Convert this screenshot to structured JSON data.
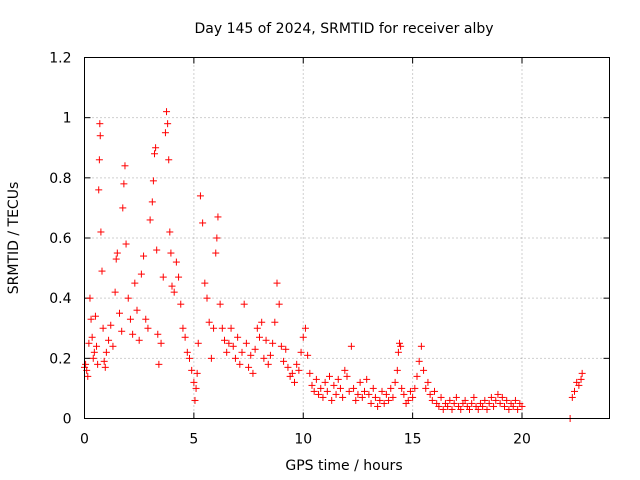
{
  "chart_data": {
    "type": "scatter",
    "title": "Day 145 of 2024, SRMTID for receiver alby",
    "xlabel": "GPS time / hours",
    "ylabel": "SRMTID / TECUs",
    "xlim": [
      0,
      24
    ],
    "ylim": [
      0,
      1.2
    ],
    "xticks": [
      0,
      5,
      10,
      15,
      20
    ],
    "yticks": [
      0,
      0.2,
      0.4,
      0.6,
      0.8,
      1,
      1.2
    ],
    "ytick_labels": [
      "0",
      "0.2",
      "0.4",
      "0.6",
      "0.8",
      "1",
      "1.2"
    ],
    "grid": true,
    "marker": "+",
    "color": "#ff0000",
    "series": [
      {
        "name": "SRMTID",
        "points": [
          [
            0.0,
            0.17
          ],
          [
            0.05,
            0.18
          ],
          [
            0.1,
            0.16
          ],
          [
            0.15,
            0.14
          ],
          [
            0.2,
            0.25
          ],
          [
            0.25,
            0.4
          ],
          [
            0.3,
            0.33
          ],
          [
            0.35,
            0.27
          ],
          [
            0.4,
            0.2
          ],
          [
            0.45,
            0.22
          ],
          [
            0.5,
            0.34
          ],
          [
            0.55,
            0.24
          ],
          [
            0.6,
            0.18
          ],
          [
            0.65,
            0.76
          ],
          [
            0.68,
            0.86
          ],
          [
            0.7,
            0.98
          ],
          [
            0.72,
            0.94
          ],
          [
            0.75,
            0.62
          ],
          [
            0.8,
            0.49
          ],
          [
            0.85,
            0.3
          ],
          [
            0.9,
            0.19
          ],
          [
            0.95,
            0.17
          ],
          [
            1.0,
            0.22
          ],
          [
            1.1,
            0.26
          ],
          [
            1.2,
            0.31
          ],
          [
            1.3,
            0.24
          ],
          [
            1.4,
            0.42
          ],
          [
            1.45,
            0.53
          ],
          [
            1.5,
            0.55
          ],
          [
            1.6,
            0.35
          ],
          [
            1.7,
            0.29
          ],
          [
            1.75,
            0.7
          ],
          [
            1.8,
            0.78
          ],
          [
            1.85,
            0.84
          ],
          [
            1.9,
            0.58
          ],
          [
            2.0,
            0.4
          ],
          [
            2.1,
            0.33
          ],
          [
            2.2,
            0.28
          ],
          [
            2.3,
            0.45
          ],
          [
            2.4,
            0.36
          ],
          [
            2.5,
            0.26
          ],
          [
            2.6,
            0.48
          ],
          [
            2.7,
            0.54
          ],
          [
            2.8,
            0.33
          ],
          [
            2.9,
            0.3
          ],
          [
            3.0,
            0.66
          ],
          [
            3.1,
            0.72
          ],
          [
            3.15,
            0.79
          ],
          [
            3.2,
            0.88
          ],
          [
            3.25,
            0.9
          ],
          [
            3.3,
            0.56
          ],
          [
            3.35,
            0.28
          ],
          [
            3.4,
            0.18
          ],
          [
            3.5,
            0.25
          ],
          [
            3.6,
            0.47
          ],
          [
            3.7,
            0.95
          ],
          [
            3.75,
            1.02
          ],
          [
            3.8,
            0.98
          ],
          [
            3.85,
            0.86
          ],
          [
            3.9,
            0.62
          ],
          [
            3.95,
            0.55
          ],
          [
            4.0,
            0.44
          ],
          [
            4.1,
            0.42
          ],
          [
            4.2,
            0.52
          ],
          [
            4.3,
            0.47
          ],
          [
            4.4,
            0.38
          ],
          [
            4.5,
            0.3
          ],
          [
            4.6,
            0.27
          ],
          [
            4.7,
            0.22
          ],
          [
            4.8,
            0.2
          ],
          [
            4.9,
            0.16
          ],
          [
            5.0,
            0.12
          ],
          [
            5.05,
            0.06
          ],
          [
            5.1,
            0.1
          ],
          [
            5.15,
            0.15
          ],
          [
            5.2,
            0.25
          ],
          [
            5.3,
            0.74
          ],
          [
            5.4,
            0.65
          ],
          [
            5.5,
            0.45
          ],
          [
            5.6,
            0.4
          ],
          [
            5.7,
            0.32
          ],
          [
            5.8,
            0.2
          ],
          [
            5.9,
            0.3
          ],
          [
            6.0,
            0.55
          ],
          [
            6.05,
            0.6
          ],
          [
            6.1,
            0.67
          ],
          [
            6.2,
            0.38
          ],
          [
            6.3,
            0.3
          ],
          [
            6.4,
            0.26
          ],
          [
            6.5,
            0.22
          ],
          [
            6.6,
            0.25
          ],
          [
            6.7,
            0.3
          ],
          [
            6.8,
            0.24
          ],
          [
            6.9,
            0.2
          ],
          [
            7.0,
            0.27
          ],
          [
            7.1,
            0.18
          ],
          [
            7.2,
            0.22
          ],
          [
            7.3,
            0.38
          ],
          [
            7.4,
            0.25
          ],
          [
            7.5,
            0.17
          ],
          [
            7.6,
            0.21
          ],
          [
            7.7,
            0.15
          ],
          [
            7.8,
            0.23
          ],
          [
            7.9,
            0.3
          ],
          [
            8.0,
            0.27
          ],
          [
            8.1,
            0.32
          ],
          [
            8.2,
            0.2
          ],
          [
            8.3,
            0.26
          ],
          [
            8.4,
            0.18
          ],
          [
            8.5,
            0.21
          ],
          [
            8.6,
            0.25
          ],
          [
            8.7,
            0.32
          ],
          [
            8.8,
            0.45
          ],
          [
            8.9,
            0.38
          ],
          [
            9.0,
            0.24
          ],
          [
            9.1,
            0.19
          ],
          [
            9.2,
            0.23
          ],
          [
            9.3,
            0.17
          ],
          [
            9.4,
            0.14
          ],
          [
            9.5,
            0.15
          ],
          [
            9.6,
            0.12
          ],
          [
            9.7,
            0.18
          ],
          [
            9.8,
            0.16
          ],
          [
            9.9,
            0.22
          ],
          [
            10.0,
            0.27
          ],
          [
            10.1,
            0.3
          ],
          [
            10.2,
            0.21
          ],
          [
            10.3,
            0.15
          ],
          [
            10.4,
            0.11
          ],
          [
            10.5,
            0.09
          ],
          [
            10.6,
            0.13
          ],
          [
            10.7,
            0.08
          ],
          [
            10.8,
            0.1
          ],
          [
            10.9,
            0.07
          ],
          [
            11.0,
            0.12
          ],
          [
            11.1,
            0.09
          ],
          [
            11.2,
            0.14
          ],
          [
            11.3,
            0.06
          ],
          [
            11.4,
            0.11
          ],
          [
            11.5,
            0.08
          ],
          [
            11.6,
            0.13
          ],
          [
            11.7,
            0.1
          ],
          [
            11.8,
            0.07
          ],
          [
            11.9,
            0.16
          ],
          [
            12.0,
            0.14
          ],
          [
            12.1,
            0.09
          ],
          [
            12.2,
            0.24
          ],
          [
            12.3,
            0.1
          ],
          [
            12.4,
            0.06
          ],
          [
            12.5,
            0.08
          ],
          [
            12.6,
            0.12
          ],
          [
            12.7,
            0.07
          ],
          [
            12.8,
            0.09
          ],
          [
            12.9,
            0.13
          ],
          [
            13.0,
            0.08
          ],
          [
            13.1,
            0.05
          ],
          [
            13.2,
            0.1
          ],
          [
            13.3,
            0.07
          ],
          [
            13.4,
            0.04
          ],
          [
            13.5,
            0.06
          ],
          [
            13.6,
            0.09
          ],
          [
            13.7,
            0.05
          ],
          [
            13.8,
            0.08
          ],
          [
            13.9,
            0.06
          ],
          [
            14.0,
            0.1
          ],
          [
            14.1,
            0.07
          ],
          [
            14.2,
            0.12
          ],
          [
            14.3,
            0.16
          ],
          [
            14.35,
            0.22
          ],
          [
            14.4,
            0.25
          ],
          [
            14.45,
            0.24
          ],
          [
            14.5,
            0.1
          ],
          [
            14.6,
            0.08
          ],
          [
            14.7,
            0.05
          ],
          [
            14.8,
            0.06
          ],
          [
            14.9,
            0.09
          ],
          [
            15.0,
            0.07
          ],
          [
            15.1,
            0.1
          ],
          [
            15.2,
            0.14
          ],
          [
            15.3,
            0.19
          ],
          [
            15.4,
            0.24
          ],
          [
            15.5,
            0.16
          ],
          [
            15.6,
            0.1
          ],
          [
            15.7,
            0.12
          ],
          [
            15.8,
            0.08
          ],
          [
            15.9,
            0.06
          ],
          [
            16.0,
            0.09
          ],
          [
            16.1,
            0.05
          ],
          [
            16.2,
            0.04
          ],
          [
            16.3,
            0.07
          ],
          [
            16.4,
            0.03
          ],
          [
            16.5,
            0.05
          ],
          [
            16.6,
            0.04
          ],
          [
            16.7,
            0.06
          ],
          [
            16.8,
            0.03
          ],
          [
            16.9,
            0.05
          ],
          [
            17.0,
            0.07
          ],
          [
            17.1,
            0.04
          ],
          [
            17.2,
            0.03
          ],
          [
            17.3,
            0.05
          ],
          [
            17.4,
            0.06
          ],
          [
            17.5,
            0.04
          ],
          [
            17.6,
            0.03
          ],
          [
            17.7,
            0.05
          ],
          [
            17.8,
            0.07
          ],
          [
            17.9,
            0.04
          ],
          [
            18.0,
            0.03
          ],
          [
            18.1,
            0.05
          ],
          [
            18.2,
            0.04
          ],
          [
            18.3,
            0.06
          ],
          [
            18.4,
            0.03
          ],
          [
            18.5,
            0.05
          ],
          [
            18.6,
            0.07
          ],
          [
            18.7,
            0.04
          ],
          [
            18.8,
            0.06
          ],
          [
            18.9,
            0.08
          ],
          [
            19.0,
            0.05
          ],
          [
            19.1,
            0.07
          ],
          [
            19.2,
            0.04
          ],
          [
            19.3,
            0.06
          ],
          [
            19.4,
            0.03
          ],
          [
            19.5,
            0.05
          ],
          [
            19.6,
            0.04
          ],
          [
            19.7,
            0.06
          ],
          [
            19.8,
            0.03
          ],
          [
            19.9,
            0.05
          ],
          [
            20.0,
            0.04
          ],
          [
            22.2,
            0.0
          ],
          [
            22.3,
            0.07
          ],
          [
            22.4,
            0.09
          ],
          [
            22.5,
            0.12
          ],
          [
            22.6,
            0.11
          ],
          [
            22.7,
            0.13
          ],
          [
            22.75,
            0.15
          ]
        ]
      }
    ]
  }
}
